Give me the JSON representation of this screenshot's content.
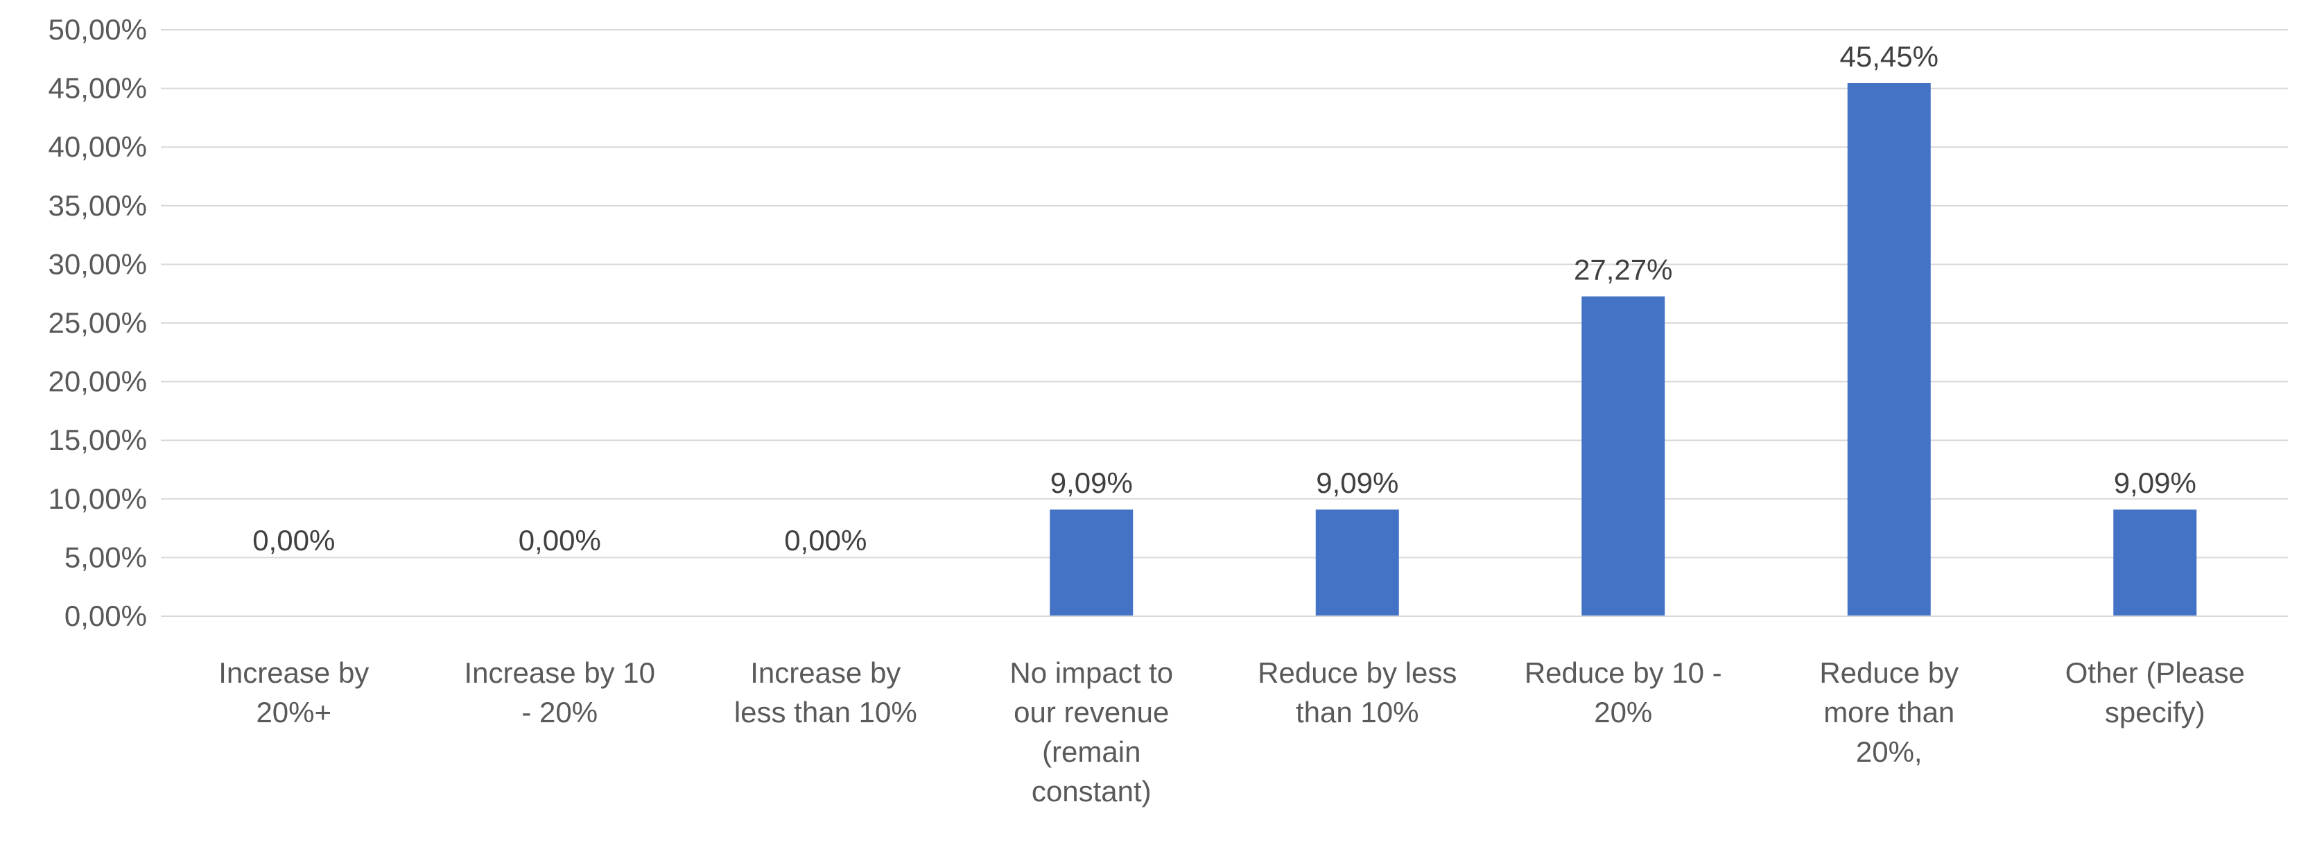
{
  "chart_data": {
    "type": "bar",
    "categories": [
      [
        "Increase by",
        "20%+"
      ],
      [
        "Increase by 10",
        "- 20%"
      ],
      [
        "Increase by",
        "less than 10%"
      ],
      [
        "No impact to",
        "our revenue",
        "(remain",
        "constant)"
      ],
      [
        "Reduce by less",
        "than 10%"
      ],
      [
        "Reduce by 10 -",
        "20%"
      ],
      [
        "Reduce by",
        "more than",
        "20%,"
      ],
      [
        "Other (Please",
        "specify)"
      ]
    ],
    "values": [
      0.0,
      0.0,
      0.0,
      9.09,
      9.09,
      27.27,
      45.45,
      9.09
    ],
    "data_labels": [
      "0,00%",
      "0,00%",
      "0,00%",
      "9,09%",
      "9,09%",
      "27,27%",
      "45,45%",
      "9,09%"
    ],
    "y_ticks": [
      0,
      5,
      10,
      15,
      20,
      25,
      30,
      35,
      40,
      45,
      50
    ],
    "y_tick_labels": [
      "0,00%",
      "5,00%",
      "10,00%",
      "15,00%",
      "20,00%",
      "25,00%",
      "30,00%",
      "35,00%",
      "40,00%",
      "45,00%",
      "50,00%"
    ],
    "ylim": [
      0,
      50
    ],
    "grid": true,
    "legend": "none",
    "bar_color": "#4472c4"
  }
}
